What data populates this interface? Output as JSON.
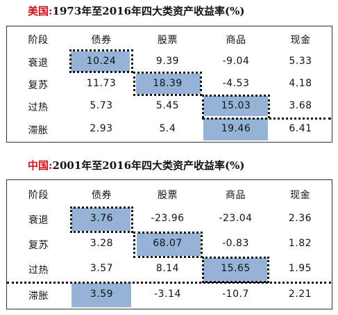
{
  "tables": [
    {
      "title_country": "美国:",
      "title_rest": "1973年至2016年四大类资产收益率(%)",
      "headers": [
        "阶段",
        "债券",
        "股票",
        "商品",
        "现金"
      ],
      "rows": [
        [
          "衰退",
          "10.24",
          "9.39",
          "-9.04",
          "5.33"
        ],
        [
          "复苏",
          "11.73",
          "18.39",
          "-4.53",
          "4.18"
        ],
        [
          "过热",
          "5.73",
          "5.45",
          "15.03",
          "3.68"
        ],
        [
          "滞胀",
          "2.93",
          "5.4",
          "19.46",
          "6.41"
        ]
      ]
    },
    {
      "title_country": "中国:",
      "title_rest": "2001年至2016年四大类资产收益率(%)",
      "headers": [
        "阶段",
        "债券",
        "股票",
        "商品",
        "现金"
      ],
      "rows": [
        [
          "衰退",
          "3.76",
          "-23.96",
          "-23.04",
          "2.36"
        ],
        [
          "复苏",
          "3.28",
          "68.07",
          "-0.83",
          "1.82"
        ],
        [
          "过热",
          "3.57",
          "8.14",
          "15.65",
          "1.95"
        ],
        [
          "滞胀",
          "3.59",
          "-3.14",
          "-10.7",
          "2.21"
        ]
      ]
    }
  ],
  "colors": {
    "title_country": "#d0121b",
    "highlight": "#95b3d7",
    "border": "#333333"
  }
}
